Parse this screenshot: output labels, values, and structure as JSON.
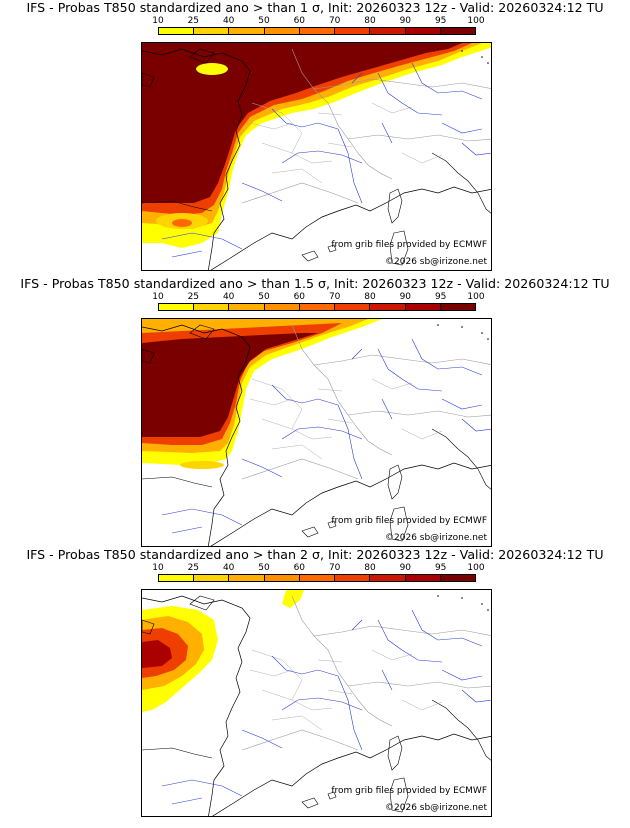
{
  "scale": {
    "ticks": [
      "10",
      "25",
      "40",
      "50",
      "60",
      "70",
      "80",
      "90",
      "95",
      "100"
    ],
    "colors": [
      "#ffff00",
      "#ffd400",
      "#ffb000",
      "#ff9000",
      "#ff6a00",
      "#ee3f00",
      "#cc1800",
      "#aa0000",
      "#7a0000"
    ]
  },
  "panels": [
    {
      "title": "IFS - Probas T850  standardized ano > than 1 σ, Init: 20260323 12z - Valid: 20260324:12 TU",
      "source": "from grib files provided by ECMWF",
      "copyright": "©2026 sb@irizone.net"
    },
    {
      "title": "IFS - Probas T850  standardized ano > than 1.5 σ, Init: 20260323 12z - Valid: 20260324:12 TU",
      "source": "from grib files provided by ECMWF",
      "copyright": "©2026 sb@irizone.net"
    },
    {
      "title": "IFS - Probas T850  standardized ano > than 2 σ, Init: 20260323 12z - Valid: 20260324:12 TU",
      "source": "from grib files provided by ECMWF",
      "copyright": "©2026 sb@irizone.net"
    }
  ]
}
